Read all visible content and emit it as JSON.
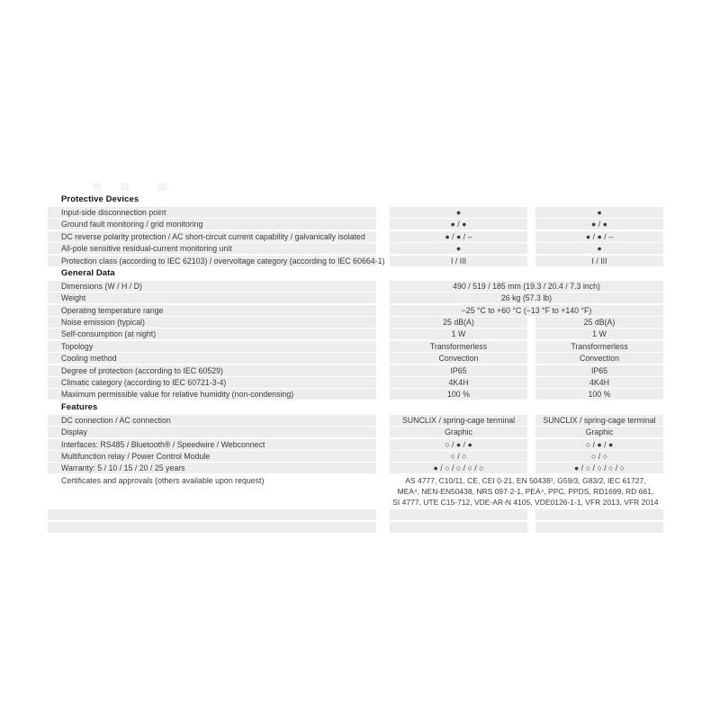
{
  "sections": [
    {
      "title": "Protective Devices",
      "rows": [
        {
          "label": "Input-side disconnection point",
          "v1": "●",
          "v2": "●"
        },
        {
          "label": "Ground fault monitoring / grid monitoring",
          "v1": "● / ●",
          "v2": "● / ●"
        },
        {
          "label": "DC reverse polarity protection / AC short-circuit current capability / galvanically isolated",
          "v1": "● / ● / –",
          "v2": "● / ● / –"
        },
        {
          "label": "All-pole sensitive residual-current monitoring unit",
          "v1": "●",
          "v2": "●"
        },
        {
          "label": "Protection class (according to IEC 62103) / overvoltage category (according to IEC 60664-1)",
          "v1": "I / III",
          "v2": "I / III"
        }
      ]
    },
    {
      "title": "General Data",
      "span_rows": [
        {
          "label": "Dimensions (W / H / D)",
          "value": "490 / 519 / 185 mm (19.3 / 20.4 / 7.3 inch)"
        },
        {
          "label": "Weight",
          "value": "26 kg (57.3 lb)"
        },
        {
          "label": "Operating temperature range",
          "value": "−25 °C to +60 °C (−13 °F to +140 °F)"
        }
      ],
      "rows": [
        {
          "label": "Noise emission (typical)",
          "v1": "25 dB(A)",
          "v2": "25 dB(A)"
        },
        {
          "label": "Self-consumption (at night)",
          "v1": "1 W",
          "v2": "1 W"
        },
        {
          "label": "Topology",
          "v1": "Transformerless",
          "v2": "Transformerless"
        },
        {
          "label": "Cooling method",
          "v1": "Convection",
          "v2": "Convection"
        },
        {
          "label": "Degree of protection (according to IEC 60529)",
          "v1": "IP65",
          "v2": "IP65"
        },
        {
          "label": "Climatic category (according to IEC 60721-3-4)",
          "v1": "4K4H",
          "v2": "4K4H"
        },
        {
          "label": "Maximum permissible value for relative humidity (non-condensing)",
          "v1": "100 %",
          "v2": "100 %"
        }
      ]
    },
    {
      "title": "Features",
      "rows": [
        {
          "label": "DC connection / AC connection",
          "v1": "SUNCLIX / spring-cage terminal",
          "v2": "SUNCLIX / spring-cage terminal"
        },
        {
          "label": "Display",
          "v1": "Graphic",
          "v2": "Graphic"
        },
        {
          "label": "Interfaces: RS485 / Bluetooth® / Speedwire / Webconnect",
          "v1": "○ / ● / ●",
          "v2": "○ / ● / ●"
        },
        {
          "label": "Multifunction relay / Power Control Module",
          "v1": "○ / ○",
          "v2": "○ / ○"
        },
        {
          "label": "Warranty: 5 / 10 / 15 / 20 / 25 years",
          "v1": "● / ○ / ○ / ○ / ○",
          "v2": "● / ○ / ○ / ○ / ○"
        }
      ],
      "certificates": {
        "label": "Certificates and approvals (others available upon request)",
        "lines": [
          "AS 4777, C10/11, CE, CEI 0-21, EN 50438¹, G59/3, G83/2, IEC 61727,",
          "MEA⁴, NEN-EN50438, NRS 097-2-1, PEA⁴, PPC, PPDS, RD1699, RD 661,",
          "SI 4777, UTE C15-712, VDE-AR-N 4105, VDE0126-1-1, VFR 2013, VFR 2014"
        ]
      }
    }
  ]
}
